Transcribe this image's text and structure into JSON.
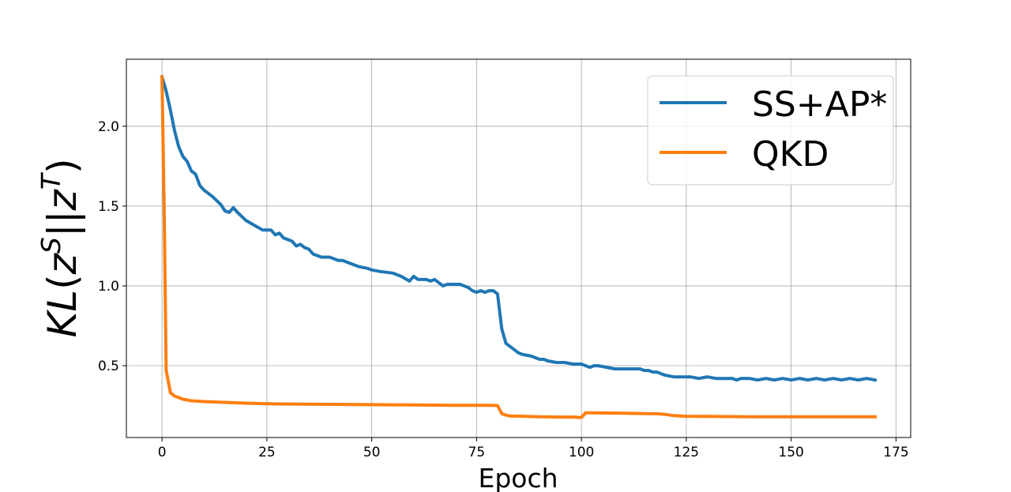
{
  "chart_data": {
    "type": "line",
    "title": "",
    "xlabel": "Epoch",
    "ylabel": {
      "kl": "KL",
      "open": "(",
      "z1": "z",
      "sup1": "S",
      "bars": "||",
      "z2": "z",
      "sup2": "T",
      "close": ")"
    },
    "xlim": [
      -8.5,
      178.5
    ],
    "ylim": [
      0.05,
      2.42
    ],
    "xticks": [
      0,
      25,
      50,
      75,
      100,
      125,
      150,
      175
    ],
    "yticks": [
      0.5,
      1.0,
      1.5,
      2.0
    ],
    "xtick_labels": [
      "0",
      "25",
      "50",
      "75",
      "100",
      "125",
      "150",
      "175"
    ],
    "ytick_labels": [
      "0.5",
      "1.0",
      "1.5",
      "2.0"
    ],
    "grid": true,
    "legend_position": "top-right",
    "series": [
      {
        "name": "SS+AP*",
        "color": "#1f77b4",
        "points": [
          [
            0,
            2.31
          ],
          [
            1,
            2.22
          ],
          [
            2,
            2.1
          ],
          [
            3,
            1.97
          ],
          [
            4,
            1.87
          ],
          [
            5,
            1.81
          ],
          [
            6,
            1.78
          ],
          [
            7,
            1.72
          ],
          [
            8,
            1.7
          ],
          [
            9,
            1.63
          ],
          [
            10,
            1.6
          ],
          [
            12,
            1.56
          ],
          [
            14,
            1.51
          ],
          [
            15,
            1.47
          ],
          [
            16,
            1.46
          ],
          [
            17,
            1.49
          ],
          [
            18,
            1.46
          ],
          [
            20,
            1.41
          ],
          [
            22,
            1.38
          ],
          [
            24,
            1.35
          ],
          [
            26,
            1.35
          ],
          [
            27,
            1.32
          ],
          [
            28,
            1.33
          ],
          [
            29,
            1.3
          ],
          [
            31,
            1.28
          ],
          [
            32,
            1.25
          ],
          [
            33,
            1.26
          ],
          [
            34,
            1.24
          ],
          [
            35,
            1.23
          ],
          [
            36,
            1.2
          ],
          [
            38,
            1.18
          ],
          [
            40,
            1.18
          ],
          [
            42,
            1.16
          ],
          [
            43,
            1.16
          ],
          [
            45,
            1.14
          ],
          [
            47,
            1.12
          ],
          [
            49,
            1.11
          ],
          [
            50,
            1.1
          ],
          [
            52,
            1.09
          ],
          [
            55,
            1.08
          ],
          [
            57,
            1.06
          ],
          [
            59,
            1.03
          ],
          [
            60,
            1.06
          ],
          [
            61,
            1.04
          ],
          [
            63,
            1.04
          ],
          [
            64,
            1.03
          ],
          [
            65,
            1.04
          ],
          [
            66,
            1.02
          ],
          [
            67,
            1.0
          ],
          [
            68,
            1.01
          ],
          [
            71,
            1.01
          ],
          [
            72,
            1.0
          ],
          [
            73,
            0.99
          ],
          [
            74,
            0.97
          ],
          [
            75,
            0.96
          ],
          [
            76,
            0.97
          ],
          [
            77,
            0.96
          ],
          [
            78,
            0.97
          ],
          [
            79,
            0.97
          ],
          [
            80,
            0.95
          ],
          [
            81,
            0.73
          ],
          [
            82,
            0.64
          ],
          [
            83,
            0.62
          ],
          [
            84,
            0.6
          ],
          [
            85,
            0.58
          ],
          [
            86,
            0.57
          ],
          [
            88,
            0.56
          ],
          [
            89,
            0.55
          ],
          [
            90,
            0.54
          ],
          [
            91,
            0.54
          ],
          [
            92,
            0.53
          ],
          [
            94,
            0.52
          ],
          [
            96,
            0.52
          ],
          [
            98,
            0.51
          ],
          [
            100,
            0.51
          ],
          [
            101,
            0.5
          ],
          [
            102,
            0.49
          ],
          [
            103,
            0.5
          ],
          [
            104,
            0.5
          ],
          [
            106,
            0.49
          ],
          [
            108,
            0.48
          ],
          [
            110,
            0.48
          ],
          [
            112,
            0.48
          ],
          [
            114,
            0.48
          ],
          [
            115,
            0.47
          ],
          [
            116,
            0.47
          ],
          [
            117,
            0.46
          ],
          [
            118,
            0.46
          ],
          [
            119,
            0.45
          ],
          [
            120,
            0.44
          ],
          [
            122,
            0.43
          ],
          [
            124,
            0.43
          ],
          [
            126,
            0.43
          ],
          [
            128,
            0.42
          ],
          [
            130,
            0.43
          ],
          [
            132,
            0.42
          ],
          [
            134,
            0.42
          ],
          [
            136,
            0.42
          ],
          [
            137,
            0.41
          ],
          [
            138,
            0.42
          ],
          [
            140,
            0.42
          ],
          [
            142,
            0.41
          ],
          [
            144,
            0.42
          ],
          [
            146,
            0.41
          ],
          [
            148,
            0.42
          ],
          [
            150,
            0.41
          ],
          [
            152,
            0.42
          ],
          [
            154,
            0.41
          ],
          [
            156,
            0.42
          ],
          [
            158,
            0.41
          ],
          [
            160,
            0.42
          ],
          [
            162,
            0.41
          ],
          [
            164,
            0.42
          ],
          [
            166,
            0.41
          ],
          [
            168,
            0.42
          ],
          [
            170,
            0.41
          ]
        ]
      },
      {
        "name": "QKD",
        "color": "#ff7f0e",
        "points": [
          [
            0,
            2.31
          ],
          [
            0.5,
            1.5
          ],
          [
            1,
            0.47
          ],
          [
            2,
            0.33
          ],
          [
            3,
            0.31
          ],
          [
            4,
            0.3
          ],
          [
            5,
            0.29
          ],
          [
            7,
            0.28
          ],
          [
            10,
            0.275
          ],
          [
            15,
            0.27
          ],
          [
            20,
            0.265
          ],
          [
            25,
            0.262
          ],
          [
            30,
            0.26
          ],
          [
            40,
            0.258
          ],
          [
            50,
            0.256
          ],
          [
            60,
            0.254
          ],
          [
            70,
            0.252
          ],
          [
            75,
            0.252
          ],
          [
            79,
            0.252
          ],
          [
            80,
            0.25
          ],
          [
            81,
            0.2
          ],
          [
            82,
            0.19
          ],
          [
            83,
            0.185
          ],
          [
            86,
            0.183
          ],
          [
            90,
            0.18
          ],
          [
            95,
            0.178
          ],
          [
            98,
            0.178
          ],
          [
            100,
            0.175
          ],
          [
            101,
            0.205
          ],
          [
            102,
            0.205
          ],
          [
            105,
            0.204
          ],
          [
            110,
            0.202
          ],
          [
            115,
            0.2
          ],
          [
            118,
            0.199
          ],
          [
            120,
            0.195
          ],
          [
            122,
            0.187
          ],
          [
            125,
            0.183
          ],
          [
            130,
            0.182
          ],
          [
            140,
            0.18
          ],
          [
            150,
            0.18
          ],
          [
            160,
            0.18
          ],
          [
            170,
            0.18
          ]
        ]
      }
    ]
  }
}
